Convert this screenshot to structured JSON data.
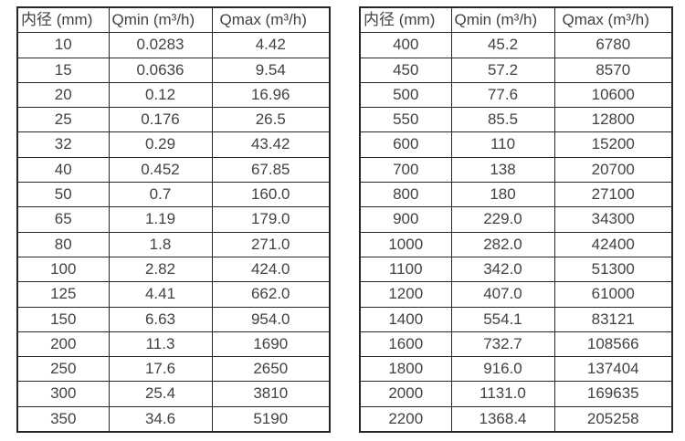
{
  "page": {
    "background": "#ffffff",
    "border_color": "#262626",
    "text_color": "#424242"
  },
  "tables": [
    {
      "name": "flow-table-small-diameters",
      "headers": [
        "内径 (mm)",
        "Qmin (m³/h)",
        "Qmax (m³/h)"
      ],
      "rows": [
        [
          "10",
          "0.0283",
          "4.42"
        ],
        [
          "15",
          "0.0636",
          "9.54"
        ],
        [
          "20",
          "0.12",
          "16.96"
        ],
        [
          "25",
          "0.176",
          "26.5"
        ],
        [
          "32",
          "0.29",
          "43.42"
        ],
        [
          "40",
          "0.452",
          "67.85"
        ],
        [
          "50",
          "0.7",
          "160.0"
        ],
        [
          "65",
          "1.19",
          "179.0"
        ],
        [
          "80",
          "1.8",
          "271.0"
        ],
        [
          "100",
          "2.82",
          "424.0"
        ],
        [
          "125",
          "4.41",
          "662.0"
        ],
        [
          "150",
          "6.63",
          "954.0"
        ],
        [
          "200",
          "11.3",
          "1690"
        ],
        [
          "250",
          "17.6",
          "2650"
        ],
        [
          "300",
          "25.4",
          "3810"
        ],
        [
          "350",
          "34.6",
          "5190"
        ]
      ]
    },
    {
      "name": "flow-table-large-diameters",
      "headers": [
        "内径 (mm)",
        "Qmin (m³/h)",
        "Qmax (m³/h)"
      ],
      "rows": [
        [
          "400",
          "45.2",
          "6780"
        ],
        [
          "450",
          "57.2",
          "8570"
        ],
        [
          "500",
          "77.6",
          "10600"
        ],
        [
          "550",
          "85.5",
          "12800"
        ],
        [
          "600",
          "110",
          "15200"
        ],
        [
          "700",
          "138",
          "20700"
        ],
        [
          "800",
          "180",
          "27100"
        ],
        [
          "900",
          "229.0",
          "34300"
        ],
        [
          "1000",
          "282.0",
          "42400"
        ],
        [
          "1100",
          "342.0",
          "51300"
        ],
        [
          "1200",
          "407.0",
          "61000"
        ],
        [
          "1400",
          "554.1",
          "83121"
        ],
        [
          "1600",
          "732.7",
          "108566"
        ],
        [
          "1800",
          "916.0",
          "137404"
        ],
        [
          "2000",
          "1131.0",
          "169635"
        ],
        [
          "2200",
          "1368.4",
          "205258"
        ]
      ]
    }
  ]
}
